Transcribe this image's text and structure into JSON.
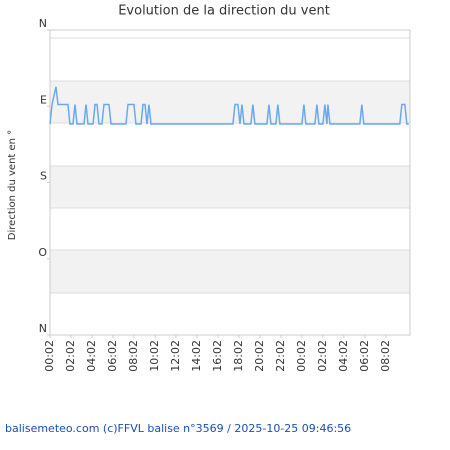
{
  "chart_data": {
    "type": "line",
    "title": "Evolution de la direction du vent",
    "y_label": "Direction du vent en °",
    "footer": "balisemeteo.com (c)FFVL balise n°3569 / 2025-10-25 09:46:56",
    "xlim": [
      0,
      34.3
    ],
    "xticks": [
      {
        "value": 0,
        "label": "00:02"
      },
      {
        "value": 2,
        "label": "02:02"
      },
      {
        "value": 4,
        "label": "04:02"
      },
      {
        "value": 6,
        "label": "06:02"
      },
      {
        "value": 8,
        "label": "08:02"
      },
      {
        "value": 10,
        "label": "10:02"
      },
      {
        "value": 12,
        "label": "12:02"
      },
      {
        "value": 14,
        "label": "14:02"
      },
      {
        "value": 16,
        "label": "16:02"
      },
      {
        "value": 18,
        "label": "18:02"
      },
      {
        "value": 20,
        "label": "20:02"
      },
      {
        "value": 22,
        "label": "22:02"
      },
      {
        "value": 24,
        "label": "00:02"
      },
      {
        "value": 26,
        "label": "02:02"
      },
      {
        "value": 28,
        "label": "04:02"
      },
      {
        "value": 30,
        "label": "06:02"
      },
      {
        "value": 32,
        "label": "08:02"
      }
    ],
    "ylim": [
      360,
      0
    ],
    "yticks": [
      {
        "value": 0,
        "label": "N"
      },
      {
        "value": 90,
        "label": "E"
      },
      {
        "value": 180,
        "label": "S"
      },
      {
        "value": 270,
        "label": "O"
      },
      {
        "value": 360,
        "label": "N"
      }
    ],
    "x": [
      0,
      0.19,
      0.57,
      0.76,
      1.71,
      1.9,
      2.19,
      2.38,
      2.57,
      3.24,
      3.43,
      3.62,
      4.1,
      4.29,
      4.48,
      4.67,
      4.95,
      5.14,
      5.62,
      5.81,
      7.24,
      7.43,
      8,
      8.19,
      8.67,
      8.86,
      9.05,
      9.24,
      9.43,
      9.62,
      17.43,
      17.62,
      17.9,
      18.1,
      18.29,
      18.48,
      19.14,
      19.33,
      19.52,
      20.67,
      20.86,
      21.05,
      21.52,
      21.71,
      21.9,
      24,
      24.19,
      24.38,
      25.24,
      25.43,
      25.62,
      26,
      26.19,
      26.38,
      26.48,
      26.67,
      29.52,
      29.71,
      29.9,
      33.33,
      33.52,
      33.81,
      34,
      34.19
    ],
    "series": [
      {
        "name": "Direction",
        "color": "#6aa9f0",
        "values": [
          111,
          88,
          67,
          88,
          88,
          111,
          111,
          88,
          111,
          111,
          88,
          111,
          111,
          88,
          88,
          111,
          111,
          88,
          88,
          111,
          111,
          88,
          88,
          111,
          111,
          88,
          88,
          111,
          88,
          111,
          111,
          88,
          88,
          111,
          88,
          111,
          111,
          88,
          111,
          111,
          88,
          111,
          111,
          88,
          111,
          111,
          88,
          111,
          111,
          88,
          111,
          111,
          88,
          111,
          88,
          111,
          111,
          88,
          111,
          111,
          88,
          88,
          111,
          111
        ]
      }
    ]
  }
}
